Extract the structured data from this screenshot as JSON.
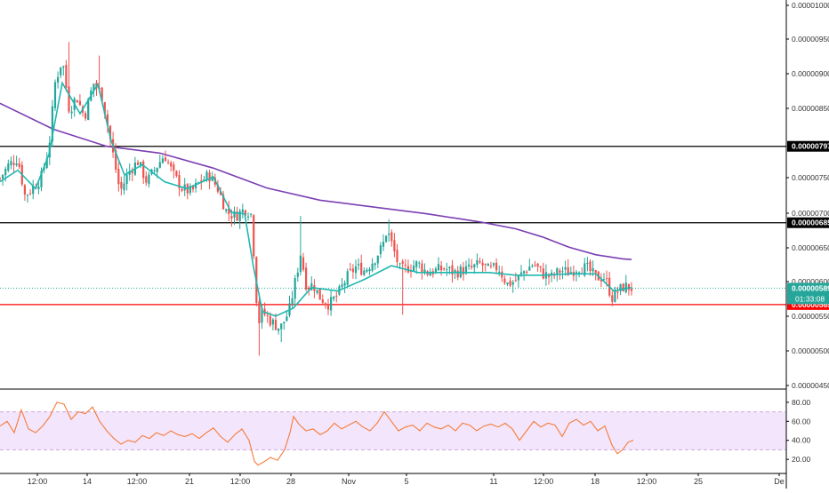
{
  "chart_data": [
    {
      "type": "candlestick",
      "panel": "price",
      "x_tick_labels": [
        "12:00",
        "14",
        "12:00",
        "21",
        "12:00",
        "28",
        "Nov",
        "5",
        "11",
        "12:00",
        "18",
        "12:00",
        "25",
        "De"
      ],
      "y_tick_labels": [
        "0.00001000",
        "0.00000950",
        "0.00000900",
        "0.00000850",
        "0.00000750",
        "0.00000700",
        "0.00000650",
        "0.00000600",
        "0.00000550",
        "0.00000500",
        "0.00000450"
      ],
      "ylim": [
        4.45e-06,
        1.005e-05
      ],
      "grid": false,
      "colors": {
        "up": "#26a69a",
        "down": "#ef5350",
        "ema": "#1fb8b0",
        "ma": "#7b3fb4",
        "hline": "#000000",
        "support": "#ff0000",
        "price_dotted": "#26a69a"
      },
      "horizontal_lines": [
        {
          "label": "0.00000797",
          "y": 7.97e-06,
          "color": "#000000"
        },
        {
          "label": "0.00000685",
          "y": 6.85e-06,
          "color": "#000000"
        },
        {
          "label": "0.00000565",
          "y": 5.65e-06,
          "color": "#ff0000"
        }
      ],
      "last_price": {
        "label": "0.00000589",
        "y": 5.89e-06,
        "countdown": "01:33:08",
        "color": "#26a69a"
      },
      "ma_long": {
        "name": "",
        "x": [
          0,
          60,
          120,
          180,
          240,
          300,
          360,
          420,
          480,
          540,
          580,
          610,
          640,
          670,
          700,
          710
        ],
        "y": [
          8.6e-06,
          8.22e-06,
          7.97e-06,
          7.87e-06,
          7.65e-06,
          7.36e-06,
          7.18e-06,
          7.08e-06,
          6.98e-06,
          6.86e-06,
          6.76e-06,
          6.64e-06,
          6.49e-06,
          6.38e-06,
          6.32e-06,
          6.31e-06
        ]
      },
      "ema_short": {
        "name": "",
        "x": [
          0,
          20,
          40,
          55,
          70,
          90,
          110,
          125,
          140,
          160,
          185,
          210,
          240,
          260,
          275,
          285,
          295,
          310,
          330,
          350,
          380,
          410,
          440,
          470,
          510,
          550,
          580,
          610,
          640,
          670,
          690,
          710
        ],
        "y": [
          7.45e-06,
          7.62e-06,
          7.35e-06,
          7.85e-06,
          8.9e-06,
          8.45e-06,
          8.88e-06,
          8.05e-06,
          7.55e-06,
          7.7e-06,
          7.45e-06,
          7.35e-06,
          7.52e-06,
          7e-06,
          6.98e-06,
          6.2e-06,
          5.55e-06,
          5.48e-06,
          5.6e-06,
          5.9e-06,
          5.85e-06,
          6.02e-06,
          6.22e-06,
          6.12e-06,
          6.12e-06,
          6.12e-06,
          6.08e-06,
          6.08e-06,
          6.1e-06,
          6.1e-06,
          5.85e-06,
          5.9e-06
        ]
      },
      "candles": {
        "count": 230,
        "close_path": {
          "x": [
            0,
            10,
            20,
            28,
            36,
            46,
            55,
            62,
            70,
            78,
            86,
            95,
            105,
            115,
            125,
            135,
            145,
            155,
            165,
            175,
            185,
            195,
            205,
            215,
            225,
            235,
            245,
            255,
            265,
            275,
            282,
            286,
            290,
            295,
            305,
            315,
            325,
            333,
            338,
            345,
            352,
            360,
            370,
            380,
            390,
            400,
            410,
            420,
            430,
            435,
            440,
            450,
            460,
            470,
            480,
            490,
            500,
            510,
            520,
            530,
            540,
            550,
            560,
            570,
            580,
            590,
            600,
            610,
            620,
            630,
            640,
            650,
            660,
            670,
            680,
            688,
            695,
            702,
            710
          ],
          "y": [
            7.5e-06,
            7.7e-06,
            7.8e-06,
            7.25e-06,
            7.35e-06,
            7.5e-06,
            7.95e-06,
            8.9e-06,
            9.25e-06,
            8.5e-06,
            8.7e-06,
            8.4e-06,
            8.9e-06,
            8.7e-06,
            8e-06,
            7.3e-06,
            7.6e-06,
            7.75e-06,
            7.45e-06,
            7.65e-06,
            7.85e-06,
            7.55e-06,
            7.35e-06,
            7.3e-06,
            7.45e-06,
            7.55e-06,
            7.35e-06,
            7e-06,
            6.95e-06,
            7.05e-06,
            7e-06,
            6.3e-06,
            5.35e-06,
            5.55e-06,
            5.4e-06,
            5.3e-06,
            5.55e-06,
            6.05e-06,
            6.4e-06,
            5.9e-06,
            5.95e-06,
            5.75e-06,
            5.65e-06,
            5.8e-06,
            6.05e-06,
            6.2e-06,
            6.15e-06,
            6.3e-06,
            6.5e-06,
            6.75e-06,
            6.55e-06,
            6.15e-06,
            6.2e-06,
            6.25e-06,
            6.12e-06,
            6.15e-06,
            6.18e-06,
            6.12e-06,
            6.15e-06,
            6.18e-06,
            6.25e-06,
            6.15e-06,
            6.2e-06,
            5.95e-06,
            6e-06,
            6.15e-06,
            6.25e-06,
            6.1e-06,
            6.05e-06,
            6.15e-06,
            6.12e-06,
            6.2e-06,
            6.18e-06,
            6.05e-06,
            6.05e-06,
            5.75e-06,
            5.85e-06,
            5.92e-06,
            5.89e-06
          ]
        },
        "spikes": [
          {
            "x": 78,
            "y": 9.5e-06
          },
          {
            "x": 290,
            "y": 4.9e-06
          },
          {
            "x": 337,
            "y": 6.95e-06
          },
          {
            "x": 436,
            "y": 6.9e-06
          },
          {
            "x": 452,
            "y": 5.5e-06
          },
          {
            "x": 112,
            "y": 9.3e-06
          },
          {
            "x": 316,
            "y": 5.1e-06
          }
        ]
      }
    },
    {
      "type": "line",
      "panel": "oscillator",
      "y_tick_labels": [
        "80.00",
        "60.00",
        "40.00",
        "20.00"
      ],
      "ylim": [
        8,
        92
      ],
      "band": [
        30,
        70
      ],
      "colors": {
        "line": "#f57c3a",
        "band_fill": "#f3e5fb",
        "band_edge": "#c9a7dd"
      },
      "x": [
        0,
        8,
        16,
        24,
        32,
        40,
        48,
        56,
        64,
        72,
        80,
        88,
        96,
        104,
        112,
        120,
        128,
        136,
        144,
        152,
        160,
        168,
        176,
        184,
        192,
        200,
        208,
        216,
        224,
        232,
        240,
        248,
        256,
        264,
        272,
        280,
        286,
        290,
        296,
        304,
        312,
        320,
        326,
        330,
        336,
        344,
        352,
        360,
        368,
        376,
        384,
        392,
        400,
        408,
        416,
        424,
        432,
        440,
        448,
        456,
        464,
        472,
        480,
        488,
        496,
        504,
        512,
        520,
        528,
        536,
        544,
        552,
        560,
        568,
        576,
        584,
        592,
        600,
        608,
        616,
        624,
        632,
        640,
        648,
        656,
        664,
        672,
        680,
        688,
        694,
        700,
        706,
        712
      ],
      "y": [
        55,
        60,
        48,
        72,
        52,
        48,
        55,
        65,
        80,
        78,
        62,
        70,
        68,
        75,
        60,
        50,
        42,
        36,
        40,
        38,
        45,
        42,
        48,
        45,
        50,
        46,
        44,
        47,
        42,
        48,
        53,
        44,
        38,
        46,
        52,
        40,
        18,
        14,
        17,
        22,
        19,
        30,
        48,
        65,
        57,
        50,
        52,
        46,
        50,
        58,
        52,
        56,
        60,
        54,
        50,
        58,
        70,
        60,
        50,
        54,
        56,
        50,
        58,
        54,
        52,
        56,
        50,
        58,
        56,
        50,
        55,
        57,
        54,
        58,
        52,
        40,
        50,
        60,
        54,
        58,
        56,
        44,
        58,
        62,
        56,
        60,
        50,
        55,
        35,
        26,
        30,
        38,
        40
      ]
    }
  ]
}
